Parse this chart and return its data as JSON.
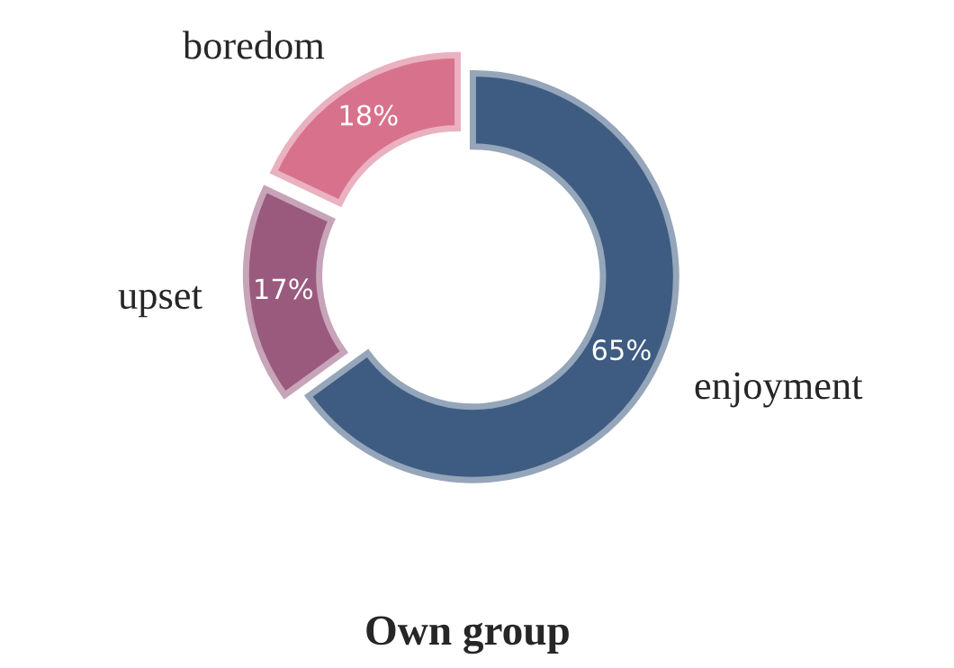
{
  "chart_data": {
    "type": "donut",
    "title": "Own group",
    "categories": [
      "enjoyment",
      "upset",
      "boredom"
    ],
    "values": [
      65,
      17,
      18
    ],
    "colors": [
      "#3e5c81",
      "#9a5a7e",
      "#d8728c"
    ],
    "value_labels": [
      "65%",
      "17%",
      "18%"
    ]
  }
}
